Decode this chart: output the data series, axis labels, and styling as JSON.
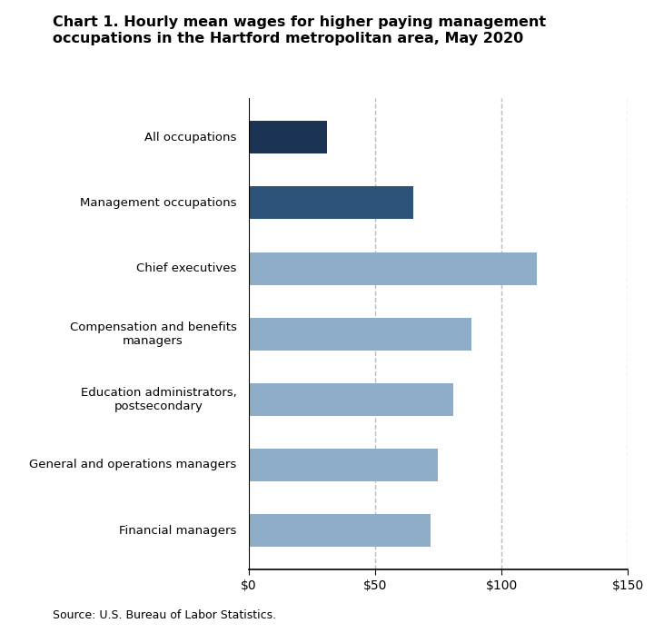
{
  "title_line1": "Chart 1. Hourly mean wages for higher paying management",
  "title_line2": "occupations in the Hartford metropolitan area, May 2020",
  "categories": [
    "Financial managers",
    "General and operations managers",
    "Education administrators,\npostsecondary",
    "Compensation and benefits\nmanagers",
    "Chief executives",
    "Management occupations",
    "All occupations"
  ],
  "values": [
    72,
    75,
    81,
    88,
    114,
    65,
    31
  ],
  "colors": [
    "#8eadc8",
    "#8eadc8",
    "#8eadc8",
    "#8eadc8",
    "#8eadc8",
    "#2d527a",
    "#1c3454"
  ],
  "xlim": [
    0,
    150
  ],
  "xticks": [
    0,
    50,
    100,
    150
  ],
  "xticklabels": [
    "$0",
    "$50",
    "$100",
    "$150"
  ],
  "grid_color": "#bbbbbb",
  "source": "Source: U.S. Bureau of Labor Statistics.",
  "background_color": "#ffffff",
  "bar_height": 0.5
}
